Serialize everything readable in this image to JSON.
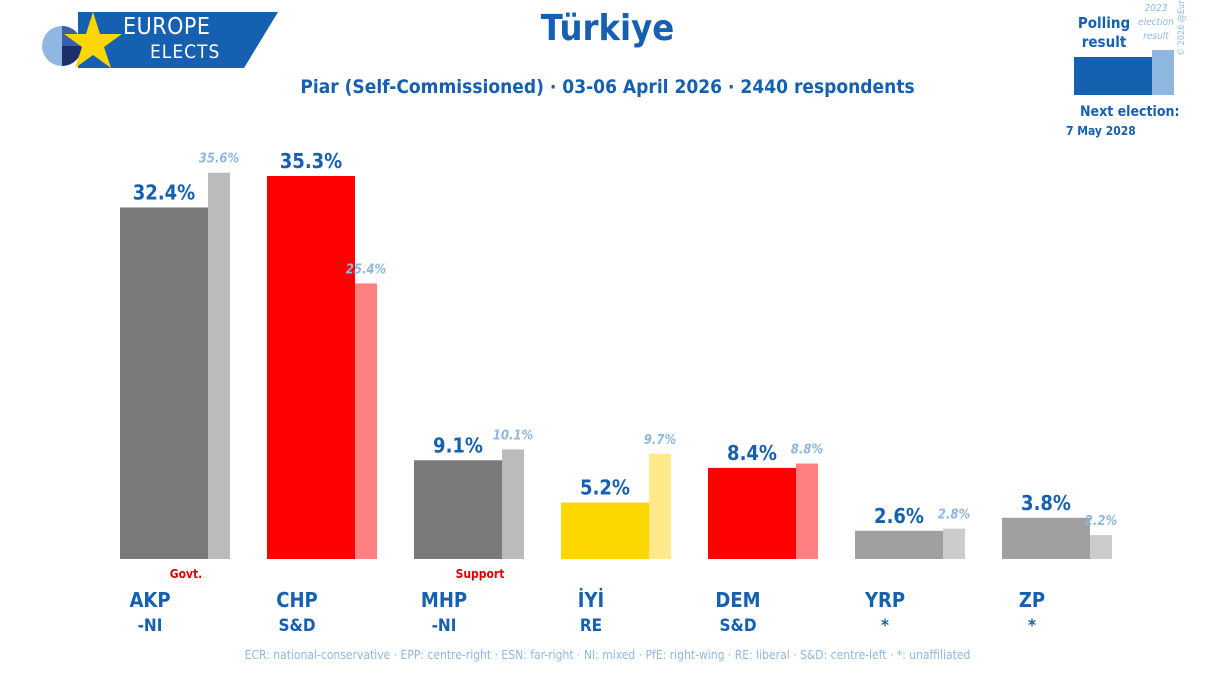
{
  "brand": {
    "line1": "EUROPE",
    "line2": "ELECTS"
  },
  "header": {
    "title": "Türkiye",
    "subtitle": "Piar (Self-Commissioned) · 03-06 April 2026 · 2440 respondents"
  },
  "legend": {
    "polling_label": "Polling result",
    "previous_label": "2023 election result",
    "next_election_label": "Next election:",
    "next_election_date": "7 May 2028",
    "copyright": "© 2026 @EuropeElects"
  },
  "colors": {
    "brand_blue": "#1560b0",
    "previous_label": "#8fb8e0"
  },
  "chart_data": {
    "type": "bar",
    "categories": [
      "AKP",
      "CHP",
      "MHP",
      "İYİ",
      "DEM",
      "YRP",
      "ZP"
    ],
    "groups": [
      "-NI",
      "S&D",
      "-NI",
      "RE",
      "S&D",
      "*",
      "*"
    ],
    "status": [
      "Govt.",
      "",
      "Support",
      "",
      "",
      "",
      ""
    ],
    "series": [
      {
        "name": "Polling result",
        "values": [
          32.4,
          35.3,
          9.1,
          5.2,
          8.4,
          2.6,
          3.8
        ],
        "labels": [
          "32.4%",
          "35.3%",
          "9.1%",
          "5.2%",
          "8.4%",
          "2.6%",
          "3.8%"
        ]
      },
      {
        "name": "2023 election result",
        "values": [
          35.6,
          25.4,
          10.1,
          9.7,
          8.8,
          2.8,
          2.2
        ],
        "labels": [
          "35.6%",
          "25.4%",
          "10.1%",
          "9.7%",
          "8.8%",
          "2.8%",
          "2.2%"
        ]
      }
    ],
    "colors": [
      "#7a7a7a",
      "#ff0000",
      "#7a7a7a",
      "#ffd700",
      "#ff0000",
      "#a0a0a0",
      "#a0a0a0"
    ],
    "previous_colors": [
      "#bbbbbb",
      "#ff8080",
      "#bbbbbb",
      "#ffe98a",
      "#ff8080",
      "#cccccc",
      "#cccccc"
    ],
    "ylim": [
      0,
      36
    ]
  },
  "footer": {
    "note": "ECR: national-conservative · EPP: centre-right · ESN: far-right · NI: mixed · PfE: right-wing · RE: liberal · S&D: centre-left · *: unaffiliated"
  }
}
